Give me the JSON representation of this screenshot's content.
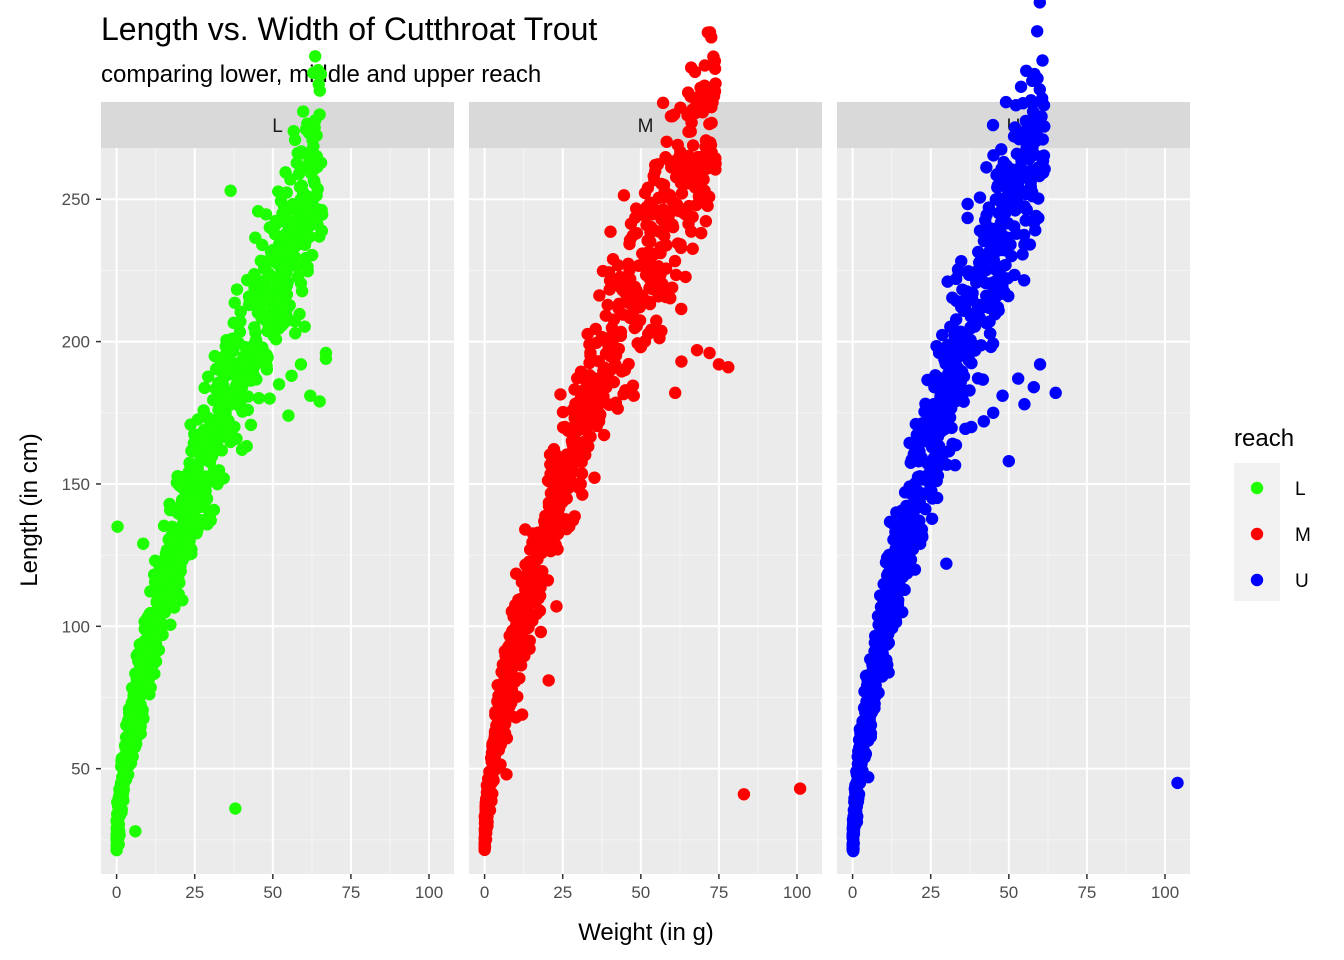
{
  "chart_data": {
    "type": "scatter",
    "title": "Length vs. Width of Cutthroat Trout",
    "subtitle": "comparing lower, middle and upper reach",
    "xlabel": "Weight (in g)",
    "ylabel": "Length (in cm)",
    "xlim": [
      -5,
      108
    ],
    "ylim": [
      13,
      268
    ],
    "x_ticks": [
      0,
      25,
      50,
      75,
      100
    ],
    "x_tick_labels": [
      "0",
      "25",
      "50",
      "75",
      "100"
    ],
    "y_ticks": [
      50,
      100,
      150,
      200,
      250
    ],
    "y_tick_labels": [
      "50",
      "100",
      "150",
      "200",
      "250"
    ],
    "grid": true,
    "facet_by": "reach",
    "legend": {
      "title": "reach",
      "position": "right",
      "entries": [
        {
          "label": "L",
          "color": "#1EFF00"
        },
        {
          "label": "M",
          "color": "#FF0000"
        },
        {
          "label": "U",
          "color": "#0000FF"
        }
      ]
    },
    "panels": [
      {
        "strip": "L",
        "color": "#1EFF00",
        "trend": {
          "a": 23,
          "b": 14.0,
          "p": 0.68,
          "xmax": 66
        },
        "points": [
          {
            "x": 0.3,
            "y": 135
          },
          {
            "x": 36.5,
            "y": 253
          },
          {
            "x": 38,
            "y": 36
          },
          {
            "x": 6,
            "y": 28
          },
          {
            "x": 8.5,
            "y": 129
          },
          {
            "x": 67,
            "y": 196
          },
          {
            "x": 67,
            "y": 194
          },
          {
            "x": 59,
            "y": 192
          },
          {
            "x": 56,
            "y": 188
          },
          {
            "x": 65,
            "y": 179
          },
          {
            "x": 42,
            "y": 176
          },
          {
            "x": 49,
            "y": 180
          },
          {
            "x": 52,
            "y": 185
          },
          {
            "x": 62,
            "y": 181
          },
          {
            "x": 55,
            "y": 174
          }
        ]
      },
      {
        "strip": "M",
        "color": "#FF0000",
        "trend": {
          "a": 22,
          "b": 16.5,
          "p": 0.64,
          "xmax": 74
        },
        "points": [
          {
            "x": 83,
            "y": 41
          },
          {
            "x": 101,
            "y": 43
          },
          {
            "x": 7,
            "y": 48
          },
          {
            "x": 20.5,
            "y": 81
          },
          {
            "x": 12,
            "y": 69
          },
          {
            "x": 10,
            "y": 68
          },
          {
            "x": 18,
            "y": 98
          },
          {
            "x": 13,
            "y": 134
          },
          {
            "x": 23,
            "y": 107
          },
          {
            "x": 68,
            "y": 197
          },
          {
            "x": 72,
            "y": 196
          },
          {
            "x": 63,
            "y": 193
          },
          {
            "x": 75,
            "y": 192
          },
          {
            "x": 78,
            "y": 191
          },
          {
            "x": 61,
            "y": 182
          }
        ]
      },
      {
        "strip": "U",
        "color": "#0000FF",
        "trend": {
          "a": 22,
          "b": 17.0,
          "p": 0.66,
          "xmax": 62
        },
        "points": [
          {
            "x": 104,
            "y": 45
          },
          {
            "x": 5,
            "y": 47
          },
          {
            "x": 30,
            "y": 122
          },
          {
            "x": 14,
            "y": 140
          },
          {
            "x": 13,
            "y": 136
          },
          {
            "x": 60,
            "y": 192
          },
          {
            "x": 65,
            "y": 182
          },
          {
            "x": 53,
            "y": 187
          },
          {
            "x": 58,
            "y": 184
          },
          {
            "x": 48,
            "y": 181
          },
          {
            "x": 55,
            "y": 178
          },
          {
            "x": 50,
            "y": 158
          },
          {
            "x": 45,
            "y": 175
          },
          {
            "x": 42,
            "y": 172
          },
          {
            "x": 38,
            "y": 170
          }
        ]
      }
    ]
  }
}
